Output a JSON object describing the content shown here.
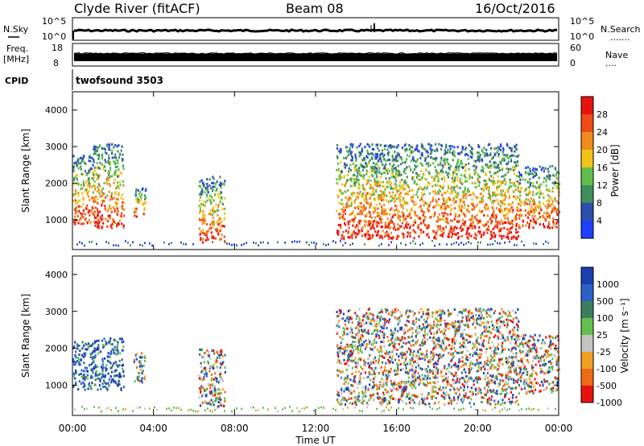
{
  "header": {
    "title": "Clyde River (fitACF)",
    "beam": "Beam 08",
    "date": "16/Oct/2016"
  },
  "panels": {
    "nsky": {
      "label": "N.Sky",
      "ticks_left": [
        "10^5",
        "10^0"
      ],
      "ticks_right": [
        "10^5",
        "10^0"
      ],
      "right_label": "N.Search",
      "right_label_marker": "......."
    },
    "freq": {
      "label_line1": "Freq.",
      "label_line2": "[MHz]",
      "ticks_left": [
        "18",
        "8"
      ],
      "ticks_right": [
        "60",
        "0"
      ],
      "right_label": "Nave",
      "right_label_marker": "...."
    },
    "cpid": {
      "label": "CPID",
      "value": "twofsound 3503"
    }
  },
  "colors": {
    "power_scale": [
      "#1f3fff",
      "#2c4fae",
      "#3f8f5c",
      "#5fbf4a",
      "#f2c41a",
      "#f08a1c",
      "#ef4d16",
      "#e8130f"
    ],
    "velocity_scale": [
      "#1a3fb0",
      "#2c61c7",
      "#3b7d5e",
      "#63c04f",
      "#c4c4c4",
      "#f2a022",
      "#ef6a14",
      "#e8130f"
    ]
  },
  "chart_data": [
    {
      "type": "heatmap",
      "panel": "power",
      "ylabel": "Slant Range [km]",
      "ylim": [
        180,
        4500
      ],
      "xlim_hours": [
        0,
        24
      ],
      "yticks": [
        "1000",
        "2000",
        "3000",
        "4000"
      ],
      "colorbar_label": "Power [dB]",
      "colorbar_ticks": [
        "4",
        "8",
        "12",
        "16",
        "20",
        "24",
        "28"
      ],
      "blobs": [
        {
          "t0": 0.0,
          "t1": 1.0,
          "r0": 900,
          "r1": 2800,
          "value": "mixed high"
        },
        {
          "t0": 1.0,
          "t1": 2.5,
          "r0": 800,
          "r1": 3100,
          "value": "mixed high"
        },
        {
          "t0": 3.0,
          "t1": 3.6,
          "r0": 1100,
          "r1": 1900,
          "value": "mixed"
        },
        {
          "t0": 6.2,
          "t1": 7.5,
          "r0": 400,
          "r1": 2200,
          "value": "mixed"
        },
        {
          "t0": 13.0,
          "t1": 22.0,
          "r0": 500,
          "r1": 3100,
          "value": "mixed high"
        },
        {
          "t0": 22.0,
          "t1": 24.0,
          "r0": 800,
          "r1": 2500,
          "value": "mixed"
        }
      ]
    },
    {
      "type": "heatmap",
      "panel": "velocity",
      "ylabel": "Slant Range [km]",
      "xlabel": "Time UT",
      "ylim": [
        180,
        4500
      ],
      "xlim_hours": [
        0,
        24
      ],
      "yticks": [
        "1000",
        "2000",
        "3000",
        "4000"
      ],
      "xticks": [
        "00:00",
        "04:00",
        "08:00",
        "12:00",
        "16:00",
        "20:00",
        "00:00"
      ],
      "colorbar_label": "Velocity [m s⁻¹]",
      "colorbar_ticks": [
        "1000",
        "500",
        "100",
        "25",
        "-25",
        "-100",
        "-500",
        "-1000"
      ],
      "blobs": [
        {
          "t0": 0.0,
          "t1": 1.0,
          "r0": 900,
          "r1": 2200,
          "value": "positive"
        },
        {
          "t0": 1.0,
          "t1": 2.5,
          "r0": 900,
          "r1": 2300,
          "value": "positive"
        },
        {
          "t0": 3.0,
          "t1": 3.6,
          "r0": 1100,
          "r1": 1900,
          "value": "mixed"
        },
        {
          "t0": 6.2,
          "t1": 7.5,
          "r0": 400,
          "r1": 2000,
          "value": "mixed"
        },
        {
          "t0": 13.0,
          "t1": 22.0,
          "r0": 500,
          "r1": 3100,
          "value": "mixed"
        },
        {
          "t0": 22.0,
          "t1": 24.0,
          "r0": 800,
          "r1": 2400,
          "value": "mixed"
        }
      ]
    }
  ]
}
